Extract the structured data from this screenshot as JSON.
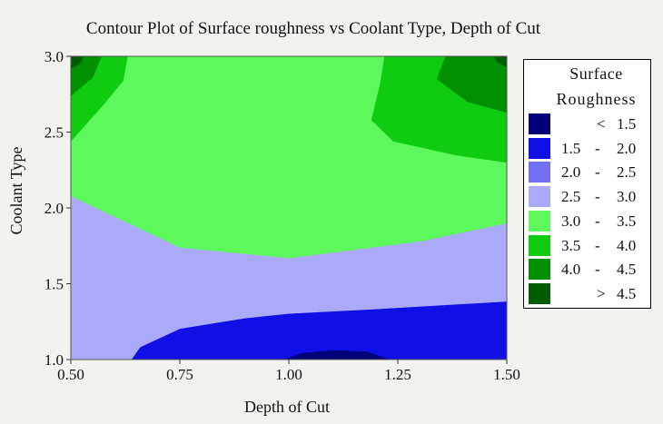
{
  "chart_data": {
    "type": "contour",
    "title": "Contour Plot of Surface roughness vs Coolant Type, Depth of Cut",
    "xlabel": "Depth of Cut",
    "ylabel": "Coolant Type",
    "xlim": [
      0.5,
      1.5
    ],
    "ylim": [
      1.0,
      3.0
    ],
    "x_ticks": [
      "0.50",
      "0.75",
      "1.00",
      "1.25",
      "1.50"
    ],
    "y_ticks": [
      "1.0",
      "1.5",
      "2.0",
      "2.5",
      "3.0"
    ],
    "legend_position": "right",
    "legend": {
      "title_line1": "Surface",
      "title_line2": "Roughness",
      "levels": [
        {
          "symbol": "<",
          "low": "",
          "high": "1.5",
          "color": "#00007a"
        },
        {
          "symbol": "",
          "low": "1.5",
          "high": "2.0",
          "color": "#1010e6"
        },
        {
          "symbol": "",
          "low": "2.0",
          "high": "2.5",
          "color": "#7070f0"
        },
        {
          "symbol": "",
          "low": "2.5",
          "high": "3.0",
          "color": "#aaaaf8"
        },
        {
          "symbol": "",
          "low": "3.0",
          "high": "3.5",
          "color": "#5cf85c"
        },
        {
          "symbol": "",
          "low": "3.5",
          "high": "4.0",
          "color": "#10cc10"
        },
        {
          "symbol": "",
          "low": "4.0",
          "high": "4.5",
          "color": "#009000"
        },
        {
          "symbol": ">",
          "low": "",
          "high": "4.5",
          "color": "#005c00"
        }
      ]
    },
    "regions": [
      {
        "level": "2.5 - 3.0",
        "polygon": [
          [
            0.5,
            1.0
          ],
          [
            1.5,
            1.0
          ],
          [
            1.5,
            1.9
          ],
          [
            1.3,
            1.78
          ],
          [
            1.0,
            1.67
          ],
          [
            0.75,
            1.74
          ],
          [
            0.5,
            2.08
          ]
        ]
      },
      {
        "level": "2.0 - 2.5",
        "polygon": [
          [
            0.64,
            1.0
          ],
          [
            0.66,
            1.08
          ],
          [
            0.75,
            1.2
          ],
          [
            0.9,
            1.27
          ],
          [
            1.0,
            1.3
          ],
          [
            1.2,
            1.33
          ],
          [
            1.5,
            1.38
          ],
          [
            1.5,
            1.0
          ]
        ]
      },
      {
        "level": "1.5 - 2.0",
        "polygon": [
          [
            0.64,
            1.0
          ],
          [
            0.66,
            1.08
          ],
          [
            0.75,
            1.2
          ],
          [
            0.9,
            1.27
          ],
          [
            1.0,
            1.3
          ],
          [
            1.2,
            1.33
          ],
          [
            1.5,
            1.38
          ],
          [
            1.5,
            1.0
          ]
        ]
      },
      {
        "level": "< 1.5",
        "polygon": [
          [
            0.99,
            1.0
          ],
          [
            1.03,
            1.04
          ],
          [
            1.1,
            1.06
          ],
          [
            1.18,
            1.05
          ],
          [
            1.23,
            1.0
          ]
        ]
      },
      {
        "level": "3.0 - 3.5",
        "polygon": [
          [
            0.5,
            2.08
          ],
          [
            0.75,
            1.74
          ],
          [
            1.0,
            1.67
          ],
          [
            1.3,
            1.78
          ],
          [
            1.5,
            1.9
          ],
          [
            1.5,
            3.0
          ],
          [
            0.5,
            3.0
          ]
        ]
      },
      {
        "level": "3.5 - 4.0",
        "polygon": [
          [
            0.5,
            3.0
          ],
          [
            0.63,
            3.0
          ],
          [
            0.62,
            2.84
          ],
          [
            0.58,
            2.7
          ],
          [
            0.5,
            2.44
          ]
        ]
      },
      {
        "level": "3.5 - 4.0",
        "polygon": [
          [
            1.22,
            3.0
          ],
          [
            1.5,
            3.0
          ],
          [
            1.5,
            2.3
          ],
          [
            1.38,
            2.35
          ],
          [
            1.24,
            2.44
          ],
          [
            1.19,
            2.58
          ],
          [
            1.21,
            2.82
          ]
        ]
      },
      {
        "level": "4.0 - 4.5",
        "polygon": [
          [
            0.5,
            3.0
          ],
          [
            0.57,
            3.0
          ],
          [
            0.55,
            2.86
          ],
          [
            0.5,
            2.74
          ]
        ]
      },
      {
        "level": "4.0 - 4.5",
        "polygon": [
          [
            1.36,
            3.0
          ],
          [
            1.5,
            3.0
          ],
          [
            1.5,
            2.63
          ],
          [
            1.41,
            2.7
          ],
          [
            1.34,
            2.85
          ]
        ]
      },
      {
        "level": "> 4.5",
        "polygon": [
          [
            0.5,
            3.0
          ],
          [
            0.53,
            3.0
          ],
          [
            0.52,
            2.95
          ],
          [
            0.5,
            2.92
          ]
        ]
      },
      {
        "level": "> 4.5",
        "polygon": [
          [
            1.47,
            3.0
          ],
          [
            1.5,
            3.0
          ],
          [
            1.5,
            2.93
          ],
          [
            1.48,
            2.96
          ]
        ]
      }
    ]
  }
}
